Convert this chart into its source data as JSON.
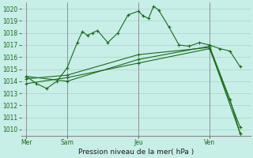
{
  "background_color": "#c8eee8",
  "grid_color": "#b0d8cc",
  "line_color": "#1a6b1a",
  "ylim": [
    1009.5,
    1020.5
  ],
  "yticks": [
    1010,
    1011,
    1012,
    1013,
    1014,
    1015,
    1016,
    1017,
    1018,
    1019,
    1020
  ],
  "xlabel": "Pression niveau de la mer( hPa )",
  "day_labels": [
    "Mer",
    "Sam",
    "Jeu",
    "Ven"
  ],
  "day_positions": [
    0,
    4,
    11,
    18
  ],
  "vline_positions": [
    0,
    4,
    11,
    18
  ],
  "series1_x": [
    0,
    1,
    2,
    3,
    4,
    5,
    5.5,
    6,
    6.5,
    7,
    8,
    9,
    10,
    11,
    11.5,
    12,
    12.5,
    13,
    14,
    15,
    16,
    17,
    18,
    19,
    20,
    21
  ],
  "series1_y": [
    1014.4,
    1013.8,
    1013.4,
    1014.0,
    1015.1,
    1017.2,
    1018.1,
    1017.8,
    1018.0,
    1018.2,
    1017.2,
    1018.0,
    1019.5,
    1019.8,
    1019.4,
    1019.2,
    1020.2,
    1019.9,
    1018.5,
    1017.0,
    1016.9,
    1017.2,
    1017.0,
    1016.7,
    1016.5,
    1015.2
  ],
  "series2_x": [
    0,
    4,
    11,
    18,
    21
  ],
  "series2_y": [
    1014.2,
    1014.5,
    1016.2,
    1016.8,
    1009.7
  ],
  "series3_x": [
    0,
    4,
    11,
    18,
    21
  ],
  "series3_y": [
    1013.8,
    1014.3,
    1015.5,
    1016.7,
    1010.2
  ],
  "series4_x": [
    0,
    4,
    11,
    18,
    20,
    21
  ],
  "series4_y": [
    1014.4,
    1014.0,
    1015.8,
    1016.9,
    1012.5,
    1009.7
  ],
  "xlim": [
    -0.5,
    22
  ]
}
